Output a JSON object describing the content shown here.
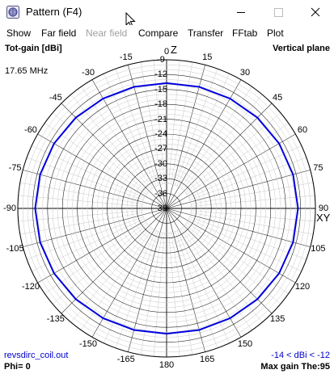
{
  "window": {
    "title": "Pattern   (F4)",
    "icon": "pattern-app-icon"
  },
  "menu": [
    {
      "label": "Show",
      "enabled": true
    },
    {
      "label": "Far field",
      "enabled": true
    },
    {
      "label": "Near field",
      "enabled": false
    },
    {
      "label": "Compare",
      "enabled": true
    },
    {
      "label": "Transfer",
      "enabled": true
    },
    {
      "label": "FFtab",
      "enabled": true
    },
    {
      "label": "Plot",
      "enabled": true
    }
  ],
  "plot": {
    "quantity_label": "Tot-gain [dBi]",
    "plane_label": "Vertical plane",
    "frequency": "17.65 MHz",
    "z_axis_label": "Z",
    "xy_axis_label": "XY",
    "angle_labels": [
      "0",
      "15",
      "30",
      "45",
      "60",
      "75",
      "90",
      "105",
      "120",
      "135",
      "150",
      "165",
      "180",
      "-165",
      "-150",
      "-135",
      "-120",
      "-105",
      "-90",
      "-75",
      "-60",
      "-45",
      "-30",
      "-15"
    ],
    "gain_labels": [
      "-9",
      "-12",
      "-15",
      "-18",
      "-21",
      "-24",
      "-27",
      "-30",
      "-33",
      "-36",
      "-39"
    ],
    "filename": "revsdirc_coil.out",
    "gain_range": "-14 < dBi < -12",
    "phi": "Phi= 0",
    "max_gain": "Max gain The:95",
    "colors": {
      "pattern": "#0000dd",
      "grid": "#c8c8c8",
      "axes": "#000000"
    }
  },
  "chart_data": {
    "type": "polar",
    "title": "Vertical plane",
    "r_unit": "dBi",
    "r_ticks": [
      -9,
      -12,
      -15,
      -18,
      -21,
      -24,
      -27,
      -30,
      -33,
      -36,
      -39
    ],
    "theta_ticks_deg": [
      0,
      15,
      30,
      45,
      60,
      75,
      90,
      105,
      120,
      135,
      150,
      165,
      180,
      -165,
      -150,
      -135,
      -120,
      -105,
      -90,
      -75,
      -60,
      -45,
      -30,
      -15
    ],
    "series": [
      {
        "theta_deg": [
          -180,
          -165,
          -150,
          -135,
          -120,
          -105,
          -90,
          -75,
          -60,
          -45,
          -30,
          -15,
          0,
          15,
          30,
          45,
          60,
          75,
          90,
          105,
          120,
          135,
          150,
          165,
          180
        ],
        "gain_dbi": [
          -13.7,
          -13.6,
          -13.4,
          -13.1,
          -12.8,
          -12.6,
          -12.5,
          -12.6,
          -12.8,
          -13.1,
          -13.4,
          -13.6,
          -13.7,
          -13.6,
          -13.4,
          -13.1,
          -12.8,
          -12.6,
          -12.5,
          -12.6,
          -12.8,
          -13.1,
          -13.4,
          -13.6,
          -13.7
        ]
      }
    ]
  }
}
